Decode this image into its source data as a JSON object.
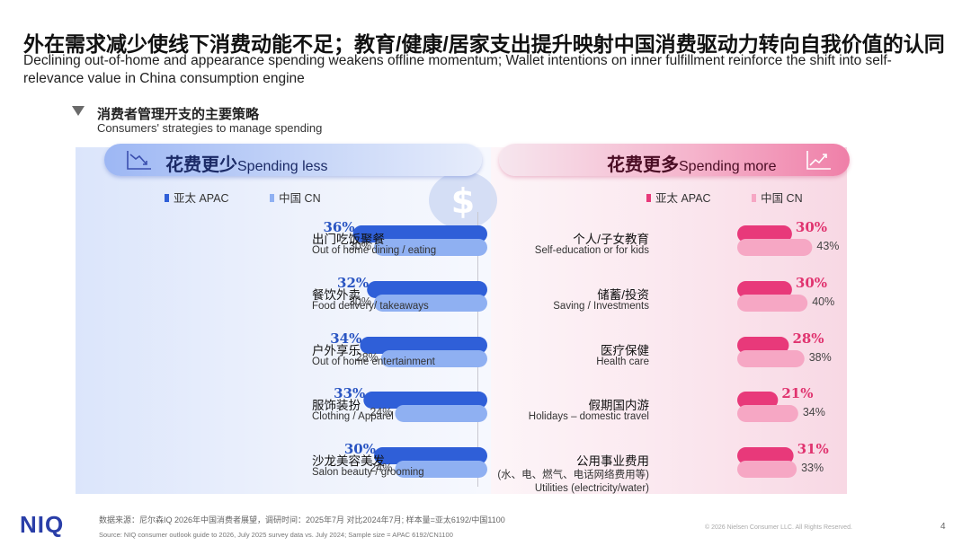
{
  "title_cn": "外在需求减少使线下消费动能不足；教育/健康/居家支出提升映射中国消费驱动力转向自我价值的认同",
  "title_en": "Declining out-of-home and appearance spending weakens offline momentum; Wallet intentions on inner fulfillment reinforce the shift into self-relevance value in China consumption engine",
  "subtitle_cn": "消费者管理开支的主要策略",
  "subtitle_en": "Consumers' strategies to manage spending",
  "colors": {
    "apac_blue": "#2f5fd8",
    "cn_blue": "#8fb0f2",
    "apac_pink": "#e8397a",
    "cn_pink": "#f6a7c4",
    "pct_blue": "#2a55c2",
    "pct_pink": "#e0336f"
  },
  "chart_data": [
    {
      "type": "bar",
      "title_cn": "花费更少",
      "title_en": "Spending less",
      "legend": [
        "亚太 APAC",
        "中国 CN"
      ],
      "legend_placement": "top",
      "unit": "%",
      "categories": [
        {
          "cn": "出门吃饭聚餐",
          "en": "Out of home dining / eating"
        },
        {
          "cn": "餐饮外卖",
          "en": "Food delivery/ takeaways"
        },
        {
          "cn": "户外享乐",
          "en": "Out of home entertainment"
        },
        {
          "cn": "服饰装扮",
          "en": "Clothing / Apparel"
        },
        {
          "cn": "沙龙美容美发",
          "en": "Salon beauty / grooming"
        }
      ],
      "series": [
        {
          "name": "亚太 APAC",
          "values": [
            36,
            32,
            34,
            33,
            30
          ],
          "labels": [
            "36%",
            "32%",
            "34%",
            "33%",
            "30%"
          ]
        },
        {
          "name": "中国 CN",
          "values": [
            30,
            30,
            28,
            24,
            24
          ],
          "labels": [
            "30%",
            "30%",
            "28%",
            "24%",
            "24%"
          ]
        }
      ]
    },
    {
      "type": "bar",
      "title_cn": "花费更多",
      "title_en": "Spending more",
      "legend": [
        "亚太 APAC",
        "中国 CN"
      ],
      "legend_placement": "top",
      "unit": "%",
      "categories": [
        {
          "cn": "个人/子女教育",
          "en": "Self-education or for kids"
        },
        {
          "cn": "储蓄/投资",
          "en": "Saving / Investments"
        },
        {
          "cn": "医疗保健",
          "en": "Health care"
        },
        {
          "cn": "假期国内游",
          "en": "Holidays – domestic travel"
        },
        {
          "cn": "公用事业费用",
          "en": "Utilities (electricity/water)",
          "note": "(水、电、燃气、电话网络费用等)"
        }
      ],
      "series": [
        {
          "name": "亚太 APAC",
          "values": [
            30,
            30,
            28,
            21,
            31
          ],
          "labels": [
            "30%",
            "30%",
            "28%",
            "21%",
            "31%"
          ]
        },
        {
          "name": "中国 CN",
          "values": [
            43,
            40,
            38,
            34,
            33
          ],
          "labels": [
            "43%",
            "40%",
            "38%",
            "34%",
            "33%"
          ]
        }
      ]
    }
  ],
  "footer": {
    "logo": "NIQ",
    "source_cn": "数据来源：尼尔森IQ 2026年中国消费者展望，调研时间：2025年7月 对比2024年7月; 样本量=亚太6192/中国1100",
    "source_en": "Source: NIQ consumer outlook guide to 2026, July 2025 survey data vs. July 2024;  Sample size = APAC 6192/CN1100",
    "copyright": "© 2026 Nielsen Consumer LLC. All Rights Reserved.",
    "page": "4"
  },
  "icons": [
    "triangle-down-icon",
    "line-chart-down-icon",
    "line-chart-up-icon",
    "money-bag-icon"
  ]
}
